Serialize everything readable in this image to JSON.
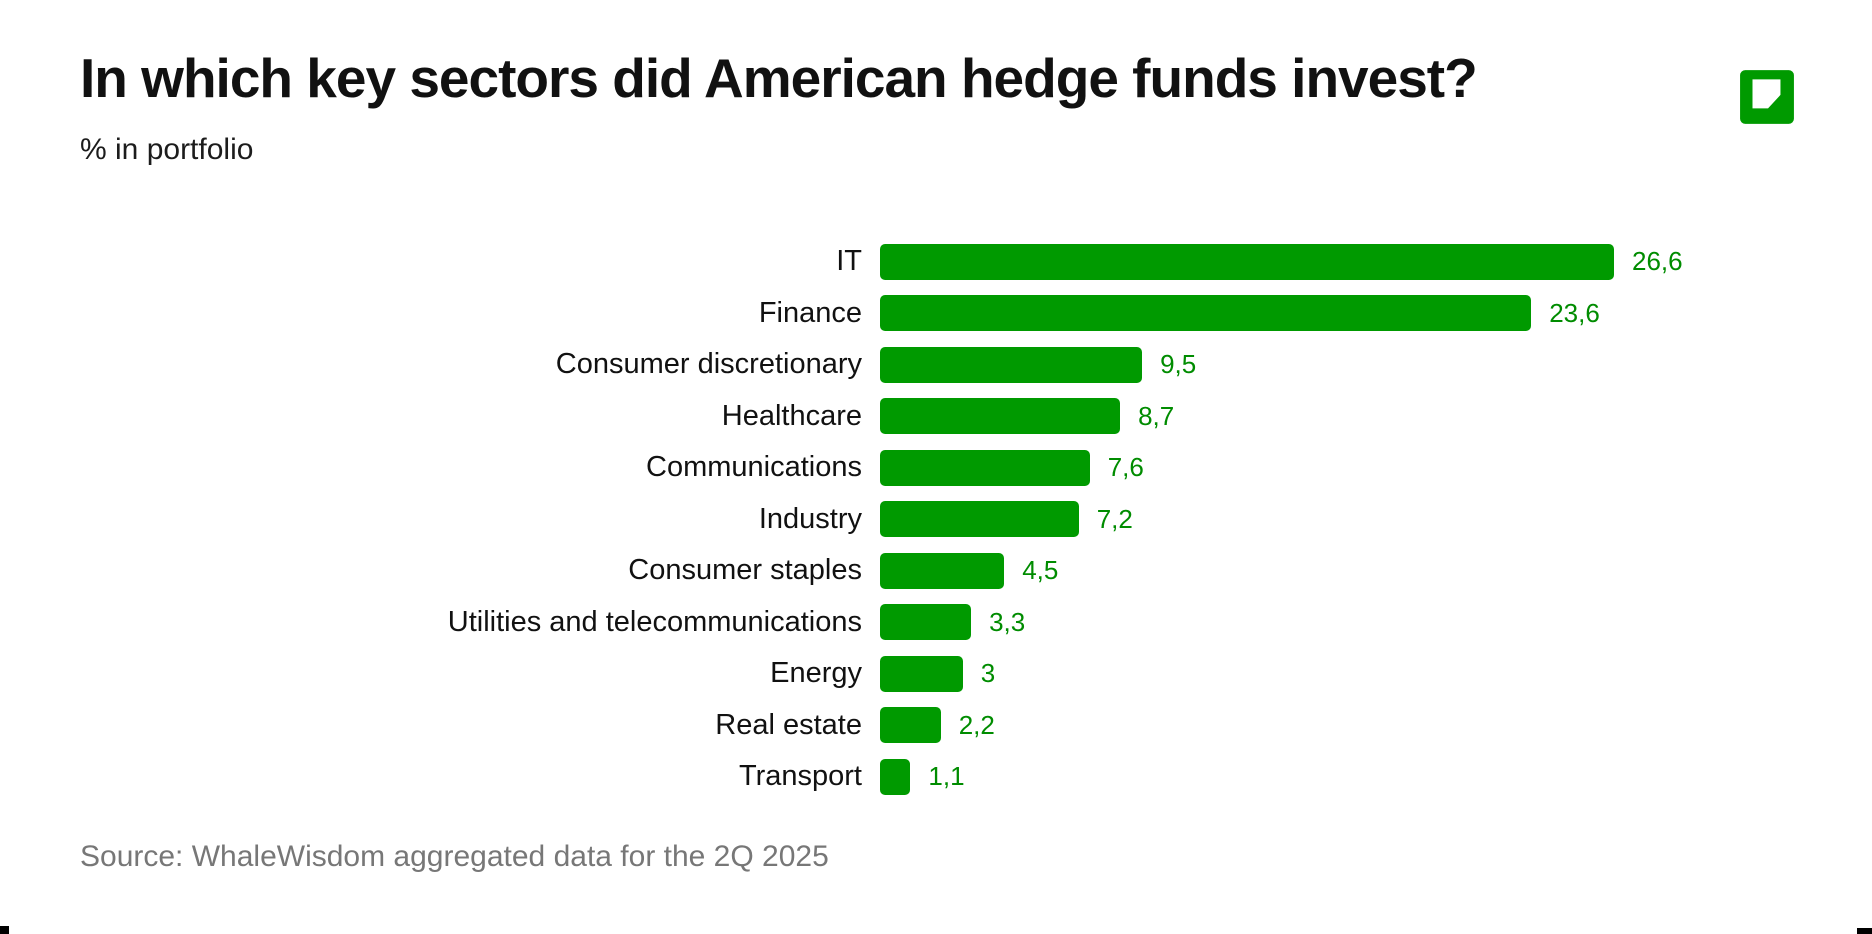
{
  "header": {
    "title": "In which key sectors did American hedge funds invest?",
    "subtitle": "% in portfolio",
    "logo_icon": "green-cube-logo",
    "logo_color": "#009A00"
  },
  "chart_data": {
    "type": "bar",
    "orientation": "horizontal",
    "title": "In which key sectors did American hedge funds invest?",
    "subtitle": "% in portfolio",
    "xlabel": "",
    "ylabel": "",
    "xlim": [
      0,
      27.6
    ],
    "grid": false,
    "legend": false,
    "decimal_separator": ",",
    "bar_color": "#009A00",
    "value_label_color": "#008C00",
    "categories": [
      "IT",
      "Finance",
      "Consumer discretionary",
      "Healthcare",
      "Communications",
      "Industry",
      "Consumer staples",
      "Utilities and telecommunications",
      "Energy",
      "Real estate",
      "Transport"
    ],
    "values": [
      26.6,
      23.6,
      9.5,
      8.7,
      7.6,
      7.2,
      4.5,
      3.3,
      3,
      2.2,
      1.1
    ],
    "value_labels": [
      "26,6",
      "23,6",
      "9,5",
      "8,7",
      "7,6",
      "7,2",
      "4,5",
      "3,3",
      "3",
      "2,2",
      "1,1"
    ]
  },
  "footer": {
    "source": "Source: WhaleWisdom aggregated data for the 2Q 2025"
  }
}
